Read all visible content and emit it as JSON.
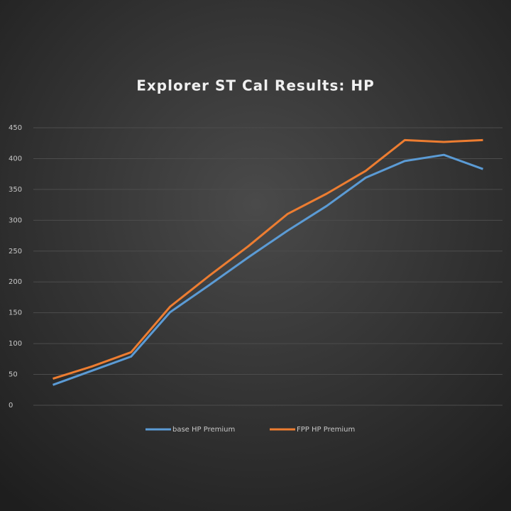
{
  "chart_data": {
    "type": "line",
    "title": "Explorer ST Cal Results: HP",
    "categories": [
      null,
      null,
      null,
      null,
      null,
      null,
      null,
      null,
      null,
      null,
      null,
      null
    ],
    "series": [
      {
        "name": "base HP Premium",
        "color": "#5b9bd5",
        "values": [
          33,
          56,
          79,
          151,
          195,
          240,
          283,
          323,
          369,
          396,
          406,
          383
        ]
      },
      {
        "name": "FPP HP Premium",
        "color": "#ed7d31",
        "values": [
          43,
          63,
          86,
          160,
          210,
          258,
          310,
          343,
          380,
          430,
          427,
          430
        ]
      }
    ],
    "ylim": [
      0,
      450
    ],
    "yticks": [
      0,
      50,
      100,
      150,
      200,
      250,
      300,
      350,
      400,
      450
    ],
    "grid": true,
    "legend": "bottom"
  }
}
